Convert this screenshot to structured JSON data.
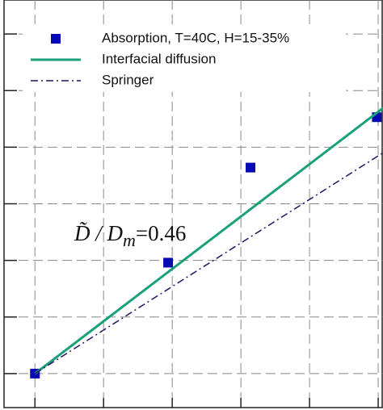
{
  "chart_data": {
    "type": "scatter",
    "xlim": [
      -0.45,
      5.07
    ],
    "ylim": [
      -0.6,
      6.6
    ],
    "xgrid": [
      0,
      1,
      2,
      3,
      4,
      5
    ],
    "ygrid": [
      0,
      1,
      2,
      3,
      4,
      5,
      6
    ],
    "series": [
      {
        "name": "Absorption, T=40C, H=15-35%",
        "kind": "markers",
        "color": "#0a0ab4",
        "x": [
          0,
          1.94,
          3.14,
          4.98
        ],
        "values": [
          0,
          1.96,
          3.64,
          4.53
        ]
      },
      {
        "name": "Interfacial diffusion",
        "kind": "solid",
        "color": "#1aa07a",
        "x": [
          0,
          5.07
        ],
        "values": [
          0,
          4.69
        ]
      },
      {
        "name": "Springer",
        "kind": "dashdot",
        "color": "#2a1060",
        "x": [
          0,
          5.07
        ],
        "values": [
          0,
          3.9
        ]
      }
    ],
    "annotation": {
      "symbol": "D̃ / D",
      "subscript": "m",
      "value": "=0.46"
    }
  }
}
